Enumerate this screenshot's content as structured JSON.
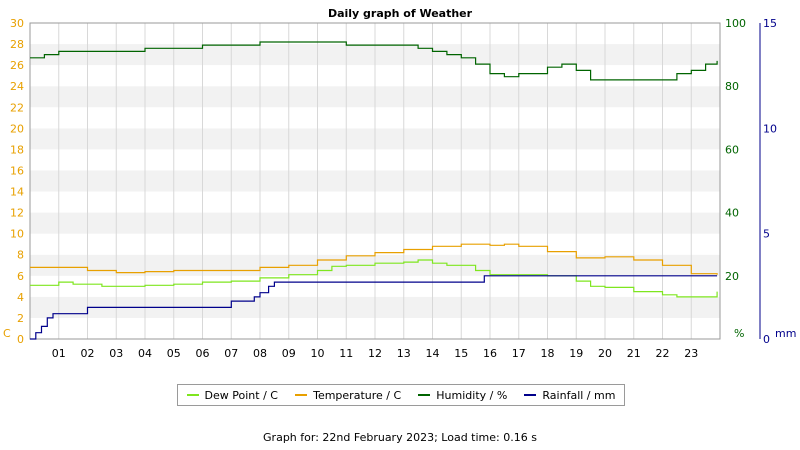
{
  "chart_data": {
    "type": "line",
    "title": "Daily graph of Weather",
    "footer": "Graph for: 22nd February 2023; Load time: 0.16 s",
    "x_ticks": [
      "01",
      "02",
      "03",
      "04",
      "05",
      "06",
      "07",
      "08",
      "09",
      "10",
      "11",
      "12",
      "13",
      "14",
      "15",
      "16",
      "17",
      "18",
      "19",
      "20",
      "21",
      "22",
      "23"
    ],
    "x_range": [
      0,
      24
    ],
    "axes": {
      "left": {
        "unit": "C",
        "range": [
          0,
          30
        ],
        "ticks": [
          0,
          2,
          4,
          6,
          8,
          10,
          12,
          14,
          16,
          18,
          20,
          22,
          24,
          26,
          28,
          30
        ],
        "color": "#e8a000"
      },
      "right1": {
        "unit": "%",
        "range": [
          0,
          100
        ],
        "ticks": [
          0,
          20,
          40,
          60,
          80,
          100
        ],
        "color": "#006400"
      },
      "right2": {
        "unit": "mm",
        "range": [
          0,
          15
        ],
        "ticks": [
          0,
          5,
          10,
          15
        ],
        "color": "#00008b"
      }
    },
    "grid": true,
    "legend_position": "bottom",
    "series": [
      {
        "name": "Dew Point / C",
        "axis": "left",
        "color": "#7ee61e",
        "x": [
          0,
          1,
          1.5,
          2,
          2.5,
          3,
          4,
          5,
          6,
          7,
          8,
          9,
          10,
          10.5,
          11,
          12,
          13,
          13.5,
          14,
          14.5,
          15,
          15.5,
          16,
          17,
          18,
          18.5,
          19,
          19.5,
          20,
          21,
          22,
          22.5,
          23,
          23.9
        ],
        "y": [
          5.1,
          5.4,
          5.2,
          5.2,
          5.0,
          5.0,
          5.1,
          5.2,
          5.4,
          5.5,
          5.8,
          6.1,
          6.5,
          6.9,
          7.0,
          7.2,
          7.3,
          7.5,
          7.2,
          7.0,
          7.0,
          6.5,
          6.1,
          6.1,
          6.0,
          6.0,
          5.5,
          5.0,
          4.9,
          4.5,
          4.2,
          4.0,
          4.0,
          4.5
        ]
      },
      {
        "name": "Temperature / C",
        "axis": "left",
        "color": "#e8a000",
        "x": [
          0,
          1,
          2,
          3,
          4,
          5,
          6,
          7,
          8,
          9,
          10,
          11,
          12,
          13,
          14,
          15,
          16,
          16.5,
          17,
          18,
          19,
          20,
          21,
          22,
          23,
          23.9
        ],
        "y": [
          6.8,
          6.8,
          6.5,
          6.3,
          6.4,
          6.5,
          6.5,
          6.5,
          6.8,
          7.0,
          7.5,
          7.9,
          8.2,
          8.5,
          8.8,
          9.0,
          8.9,
          9.0,
          8.8,
          8.3,
          7.7,
          7.8,
          7.5,
          7.0,
          6.2,
          6.1
        ]
      },
      {
        "name": "Humidity / %",
        "axis": "right1",
        "color": "#006400",
        "x": [
          0,
          0.5,
          1,
          1.5,
          2,
          3,
          4,
          5,
          6,
          7,
          8,
          9,
          10,
          10.5,
          11,
          12,
          13,
          13.5,
          14,
          14.5,
          15,
          15.5,
          16,
          16.5,
          17,
          18,
          18.5,
          19,
          19.5,
          20,
          21,
          22,
          22.5,
          23,
          23.5,
          23.9
        ],
        "y": [
          89,
          90,
          91,
          91,
          91,
          91,
          92,
          92,
          93,
          93,
          94,
          94,
          94,
          94,
          93,
          93,
          93,
          92,
          91,
          90,
          89,
          87,
          84,
          83,
          84,
          86,
          87,
          85,
          82,
          82,
          82,
          82,
          84,
          85,
          87,
          88
        ]
      },
      {
        "name": "Rainfall / mm",
        "axis": "right2",
        "color": "#00008b",
        "x": [
          0,
          0.2,
          0.4,
          0.6,
          0.8,
          2,
          7,
          7.5,
          7.8,
          8,
          8.3,
          8.5,
          9,
          15,
          15.8,
          16,
          23.9
        ],
        "y": [
          0,
          0.3,
          0.6,
          1.0,
          1.2,
          1.5,
          1.8,
          1.8,
          2.0,
          2.2,
          2.5,
          2.7,
          2.7,
          2.7,
          3.0,
          3.0,
          3.0
        ]
      }
    ]
  }
}
